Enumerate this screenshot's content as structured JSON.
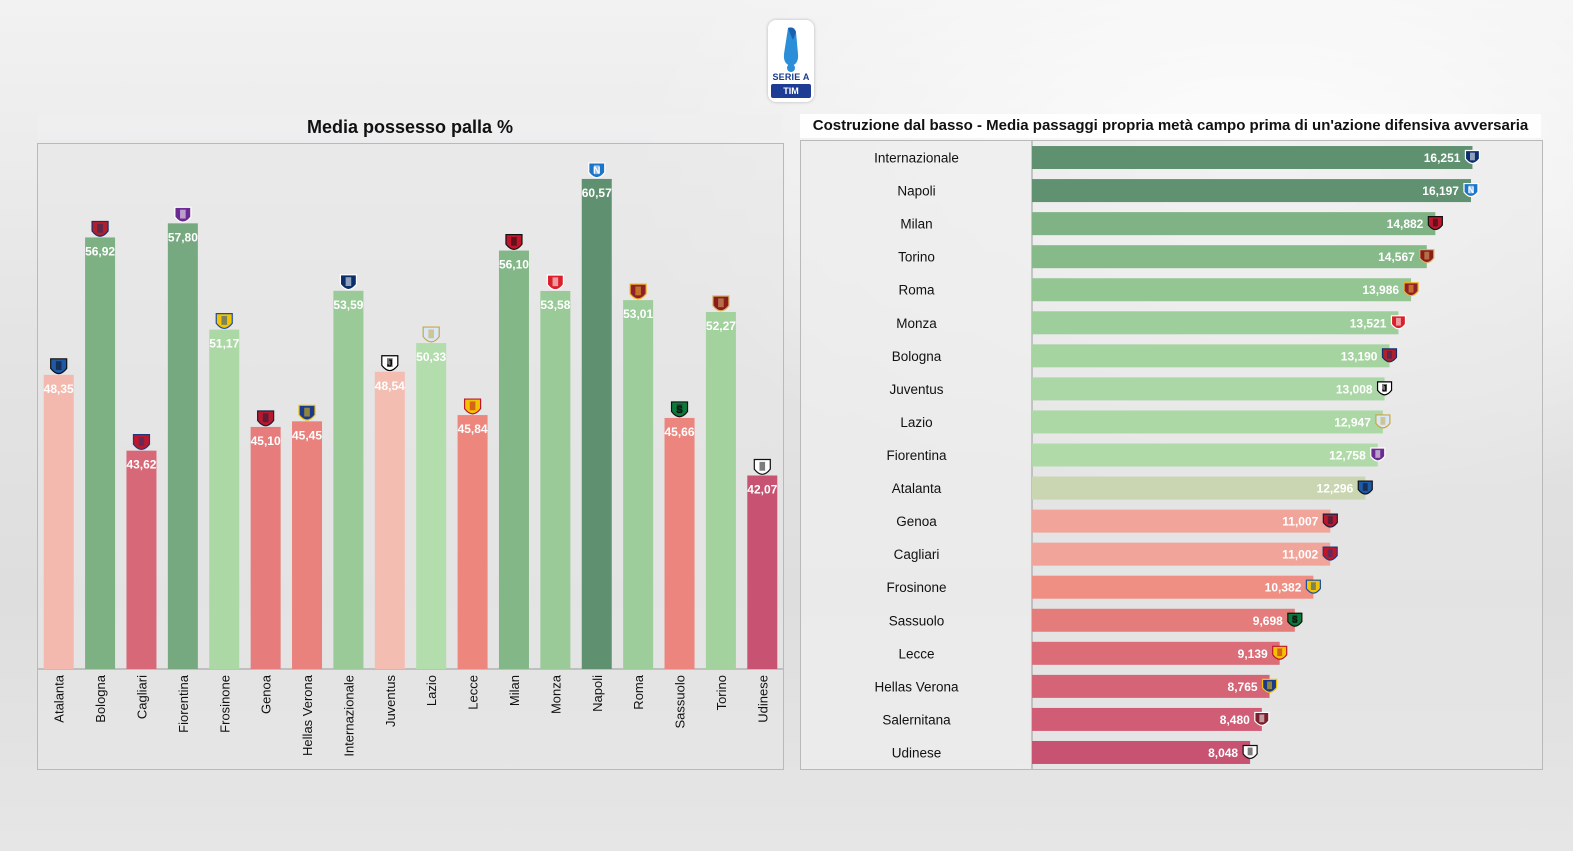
{
  "logo": {
    "name": "SERIE A",
    "sub": "TIM"
  },
  "possession": {
    "title": "Media possesso palla %",
    "chart_data": {
      "type": "bar",
      "title": "Media possesso palla %",
      "categories": [
        "Atalanta",
        "Bologna",
        "Cagliari",
        "Fiorentina",
        "Frosinone",
        "Genoa",
        "Hellas Verona",
        "Internazionale",
        "Juventus",
        "Lazio",
        "Lecce",
        "Milan",
        "Monza",
        "Napoli",
        "Roma",
        "Sassuolo",
        "Torino",
        "Udinese"
      ],
      "values": [
        48.35,
        56.92,
        43.62,
        57.8,
        51.17,
        45.1,
        45.45,
        53.59,
        48.54,
        50.33,
        45.84,
        56.1,
        53.58,
        60.57,
        53.01,
        45.66,
        52.27,
        42.07
      ],
      "labels": [
        "48,35",
        "56,92",
        "43,62",
        "57,80",
        "51,17",
        "45,10",
        "45,45",
        "53,59",
        "48,54",
        "50,33",
        "45,84",
        "56,10",
        "53,58",
        "60,57",
        "53,01",
        "45,66",
        "52,27",
        "42,07"
      ],
      "xlabel": "",
      "ylabel": "",
      "ylim": [
        30,
        62
      ]
    }
  },
  "buildup": {
    "title": "Costruzione dal basso - Media passaggi propria metà campo prima di un'azione difensiva avversaria",
    "chart_data": {
      "type": "bar",
      "orientation": "horizontal",
      "title": "Costruzione dal basso - Media passaggi propria metà campo prima di un'azione difensiva avversaria",
      "categories": [
        "Internazionale",
        "Napoli",
        "Milan",
        "Torino",
        "Roma",
        "Monza",
        "Bologna",
        "Juventus",
        "Lazio",
        "Fiorentina",
        "Atalanta",
        "Genoa",
        "Cagliari",
        "Frosinone",
        "Sassuolo",
        "Lecce",
        "Hellas Verona",
        "Salernitana",
        "Udinese"
      ],
      "values": [
        16.251,
        16.197,
        14.882,
        14.567,
        13.986,
        13.521,
        13.19,
        13.008,
        12.947,
        12.758,
        12.296,
        11.007,
        11.002,
        10.382,
        9.698,
        9.139,
        8.765,
        8.48,
        8.048
      ],
      "labels": [
        "16,251",
        "16,197",
        "14,882",
        "14,567",
        "13,986",
        "13,521",
        "13,190",
        "13,008",
        "12,947",
        "12,758",
        "12,296",
        "11,007",
        "11,002",
        "10,382",
        "9,698",
        "9,139",
        "8,765",
        "8,480",
        "8,048"
      ],
      "xlim": [
        0,
        17.5
      ]
    }
  },
  "colors": {
    "high": "#5f9170",
    "mid_high": "#8fc38f",
    "mid": "#b6dfae",
    "low_pink": "#f4c2b7",
    "low": "#ef8a7f",
    "lowest": "#c85272"
  },
  "team_badges": {
    "Atalanta": {
      "c1": "#1e5aa8",
      "c2": "#111111",
      "glyph": ""
    },
    "Bologna": {
      "c1": "#b0202a",
      "c2": "#1a2d6b",
      "glyph": ""
    },
    "Cagliari": {
      "c1": "#c0162c",
      "c2": "#1f3a7a",
      "glyph": ""
    },
    "Fiorentina": {
      "c1": "#6b2c91",
      "c2": "#ffffff",
      "glyph": ""
    },
    "Frosinone": {
      "c1": "#f2c300",
      "c2": "#1d4fa3",
      "glyph": ""
    },
    "Genoa": {
      "c1": "#b8182c",
      "c2": "#16203f",
      "glyph": ""
    },
    "Hellas Verona": {
      "c1": "#1b3a8a",
      "c2": "#f2c300",
      "glyph": ""
    },
    "Internazionale": {
      "c1": "#0c2f6b",
      "c2": "#ffffff",
      "glyph": ""
    },
    "Juventus": {
      "c1": "#ffffff",
      "c2": "#000000",
      "glyph": "J"
    },
    "Lazio": {
      "c1": "#d8e8f6",
      "c2": "#c9a646",
      "glyph": ""
    },
    "Lecce": {
      "c1": "#f2c300",
      "c2": "#c0162c",
      "glyph": ""
    },
    "Milan": {
      "c1": "#c0162c",
      "c2": "#111111",
      "glyph": ""
    },
    "Monza": {
      "c1": "#d9202c",
      "c2": "#ffffff",
      "glyph": ""
    },
    "Napoli": {
      "c1": "#1b75c9",
      "c2": "#ffffff",
      "glyph": "N"
    },
    "Roma": {
      "c1": "#8e1f2f",
      "c2": "#f0b323",
      "glyph": ""
    },
    "Sassuolo": {
      "c1": "#0b7a3b",
      "c2": "#111111",
      "glyph": "S"
    },
    "Torino": {
      "c1": "#8a1c1c",
      "c2": "#d8b26a",
      "glyph": ""
    },
    "Udinese": {
      "c1": "#ffffff",
      "c2": "#111111",
      "glyph": ""
    },
    "Salernitana": {
      "c1": "#7a1f2b",
      "c2": "#ffffff",
      "glyph": ""
    }
  }
}
